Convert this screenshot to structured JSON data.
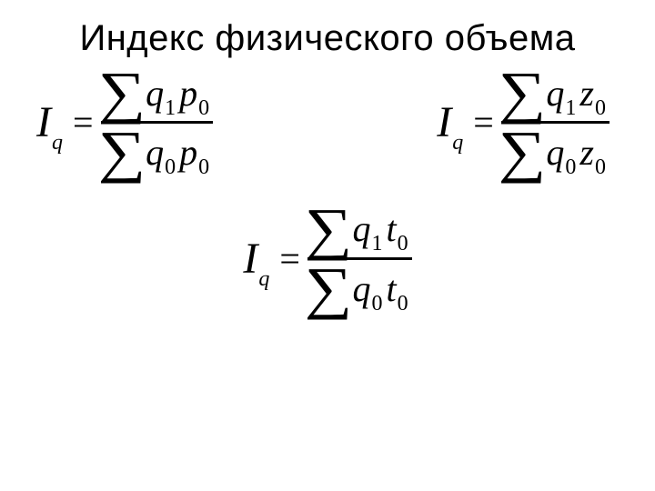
{
  "title": "Индекс физического объема",
  "title_fontsize": 40,
  "text_color": "#000000",
  "background_color": "#ffffff",
  "formula_font": "Times New Roman",
  "formulas": {
    "f1": {
      "lhs_sym": "I",
      "lhs_sub": "q",
      "eq": "=",
      "num_sigma": "∑",
      "num_a": "q",
      "num_a_sub": "1",
      "num_b": "p",
      "num_b_sub": "0",
      "den_sigma": "∑",
      "den_a": "q",
      "den_a_sub": "0",
      "den_b": "p",
      "den_b_sub": "0"
    },
    "f2": {
      "lhs_sym": "I",
      "lhs_sub": "q",
      "eq": "=",
      "num_sigma": "∑",
      "num_a": "q",
      "num_a_sub": "1",
      "num_b": "z",
      "num_b_sub": "0",
      "den_sigma": "∑",
      "den_a": "q",
      "den_a_sub": "0",
      "den_b": "z",
      "den_b_sub": "0"
    },
    "f3": {
      "lhs_sym": "I",
      "lhs_sub": "q",
      "eq": "=",
      "num_sigma": "∑",
      "num_a": "q",
      "num_a_sub": "1",
      "num_b": "t",
      "num_b_sub": "0",
      "den_sigma": "∑",
      "den_a": "q",
      "den_a_sub": "0",
      "den_b": "t",
      "den_b_sub": "0"
    }
  }
}
